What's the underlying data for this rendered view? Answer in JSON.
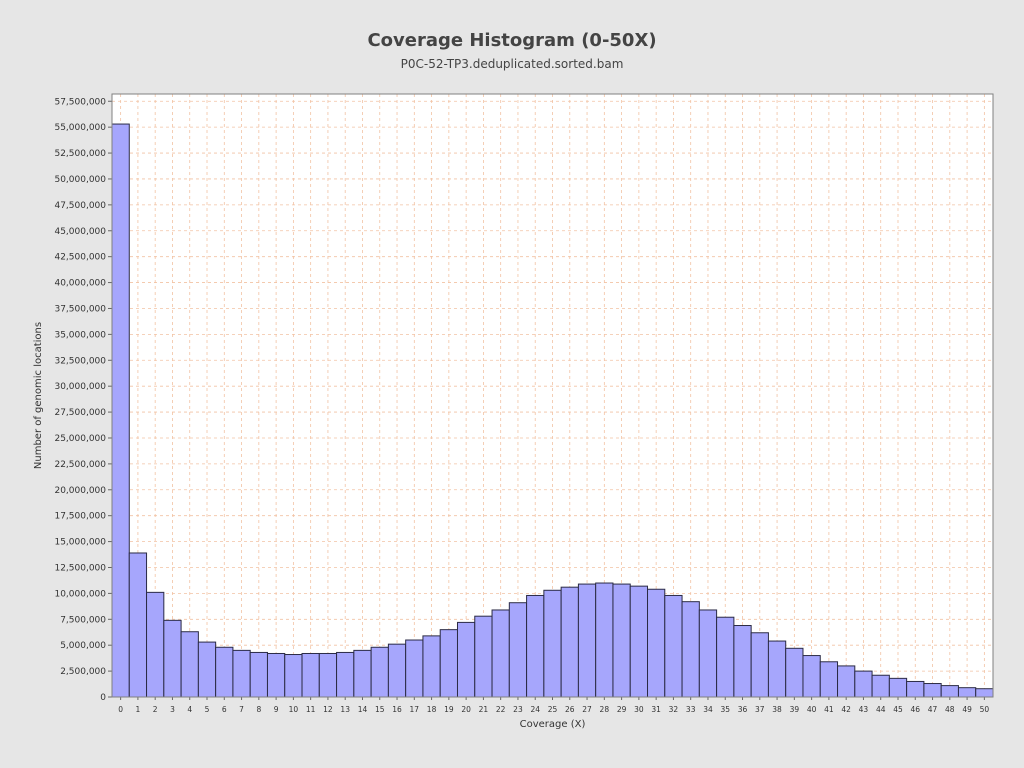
{
  "chart_data": {
    "type": "bar",
    "title": "Coverage Histogram (0-50X)",
    "subtitle": "P0C-52-TP3.deduplicated.sorted.bam",
    "xlabel": "Coverage (X)",
    "ylabel": "Number of genomic locations",
    "categories": [
      "0",
      "1",
      "2",
      "3",
      "4",
      "5",
      "6",
      "7",
      "8",
      "9",
      "10",
      "11",
      "12",
      "13",
      "14",
      "15",
      "16",
      "17",
      "18",
      "19",
      "20",
      "21",
      "22",
      "23",
      "24",
      "25",
      "26",
      "27",
      "28",
      "29",
      "30",
      "31",
      "32",
      "33",
      "34",
      "35",
      "36",
      "37",
      "38",
      "39",
      "40",
      "41",
      "42",
      "43",
      "44",
      "45",
      "46",
      "47",
      "48",
      "49",
      "50"
    ],
    "values": [
      55300000,
      13900000,
      10100000,
      7400000,
      6300000,
      5300000,
      4800000,
      4500000,
      4300000,
      4200000,
      4100000,
      4200000,
      4200000,
      4300000,
      4500000,
      4800000,
      5100000,
      5500000,
      5900000,
      6500000,
      7200000,
      7800000,
      8400000,
      9100000,
      9800000,
      10300000,
      10600000,
      10900000,
      11000000,
      10900000,
      10700000,
      10400000,
      9800000,
      9200000,
      8400000,
      7700000,
      6900000,
      6200000,
      5400000,
      4700000,
      4000000,
      3400000,
      3000000,
      2500000,
      2100000,
      1800000,
      1500000,
      1300000,
      1100000,
      900000,
      800000
    ],
    "ylim": [
      0,
      58200000
    ],
    "yticks": [
      0,
      2500000,
      5000000,
      7500000,
      10000000,
      12500000,
      15000000,
      17500000,
      20000000,
      22500000,
      25000000,
      27500000,
      30000000,
      32500000,
      35000000,
      37500000,
      40000000,
      42500000,
      45000000,
      47500000,
      50000000,
      52500000,
      55000000,
      57500000
    ],
    "ytick_labels": [
      "0",
      "2,500,000",
      "5,000,000",
      "7,500,000",
      "10,000,000",
      "12,500,000",
      "15,000,000",
      "17,500,000",
      "20,000,000",
      "22,500,000",
      "25,000,000",
      "27,500,000",
      "30,000,000",
      "32,500,000",
      "35,000,000",
      "37,500,000",
      "40,000,000",
      "42,500,000",
      "45,000,000",
      "47,500,000",
      "50,000,000",
      "52,500,000",
      "55,000,000",
      "57,500,000"
    ],
    "grid": true,
    "legend": "none",
    "colors": {
      "bar_fill": "#a6a6fc",
      "bar_stroke": "#2b2b45",
      "grid": "#f2c2a3",
      "plot_bg": "#ffffff",
      "page_bg": "#e6e6e6"
    }
  }
}
